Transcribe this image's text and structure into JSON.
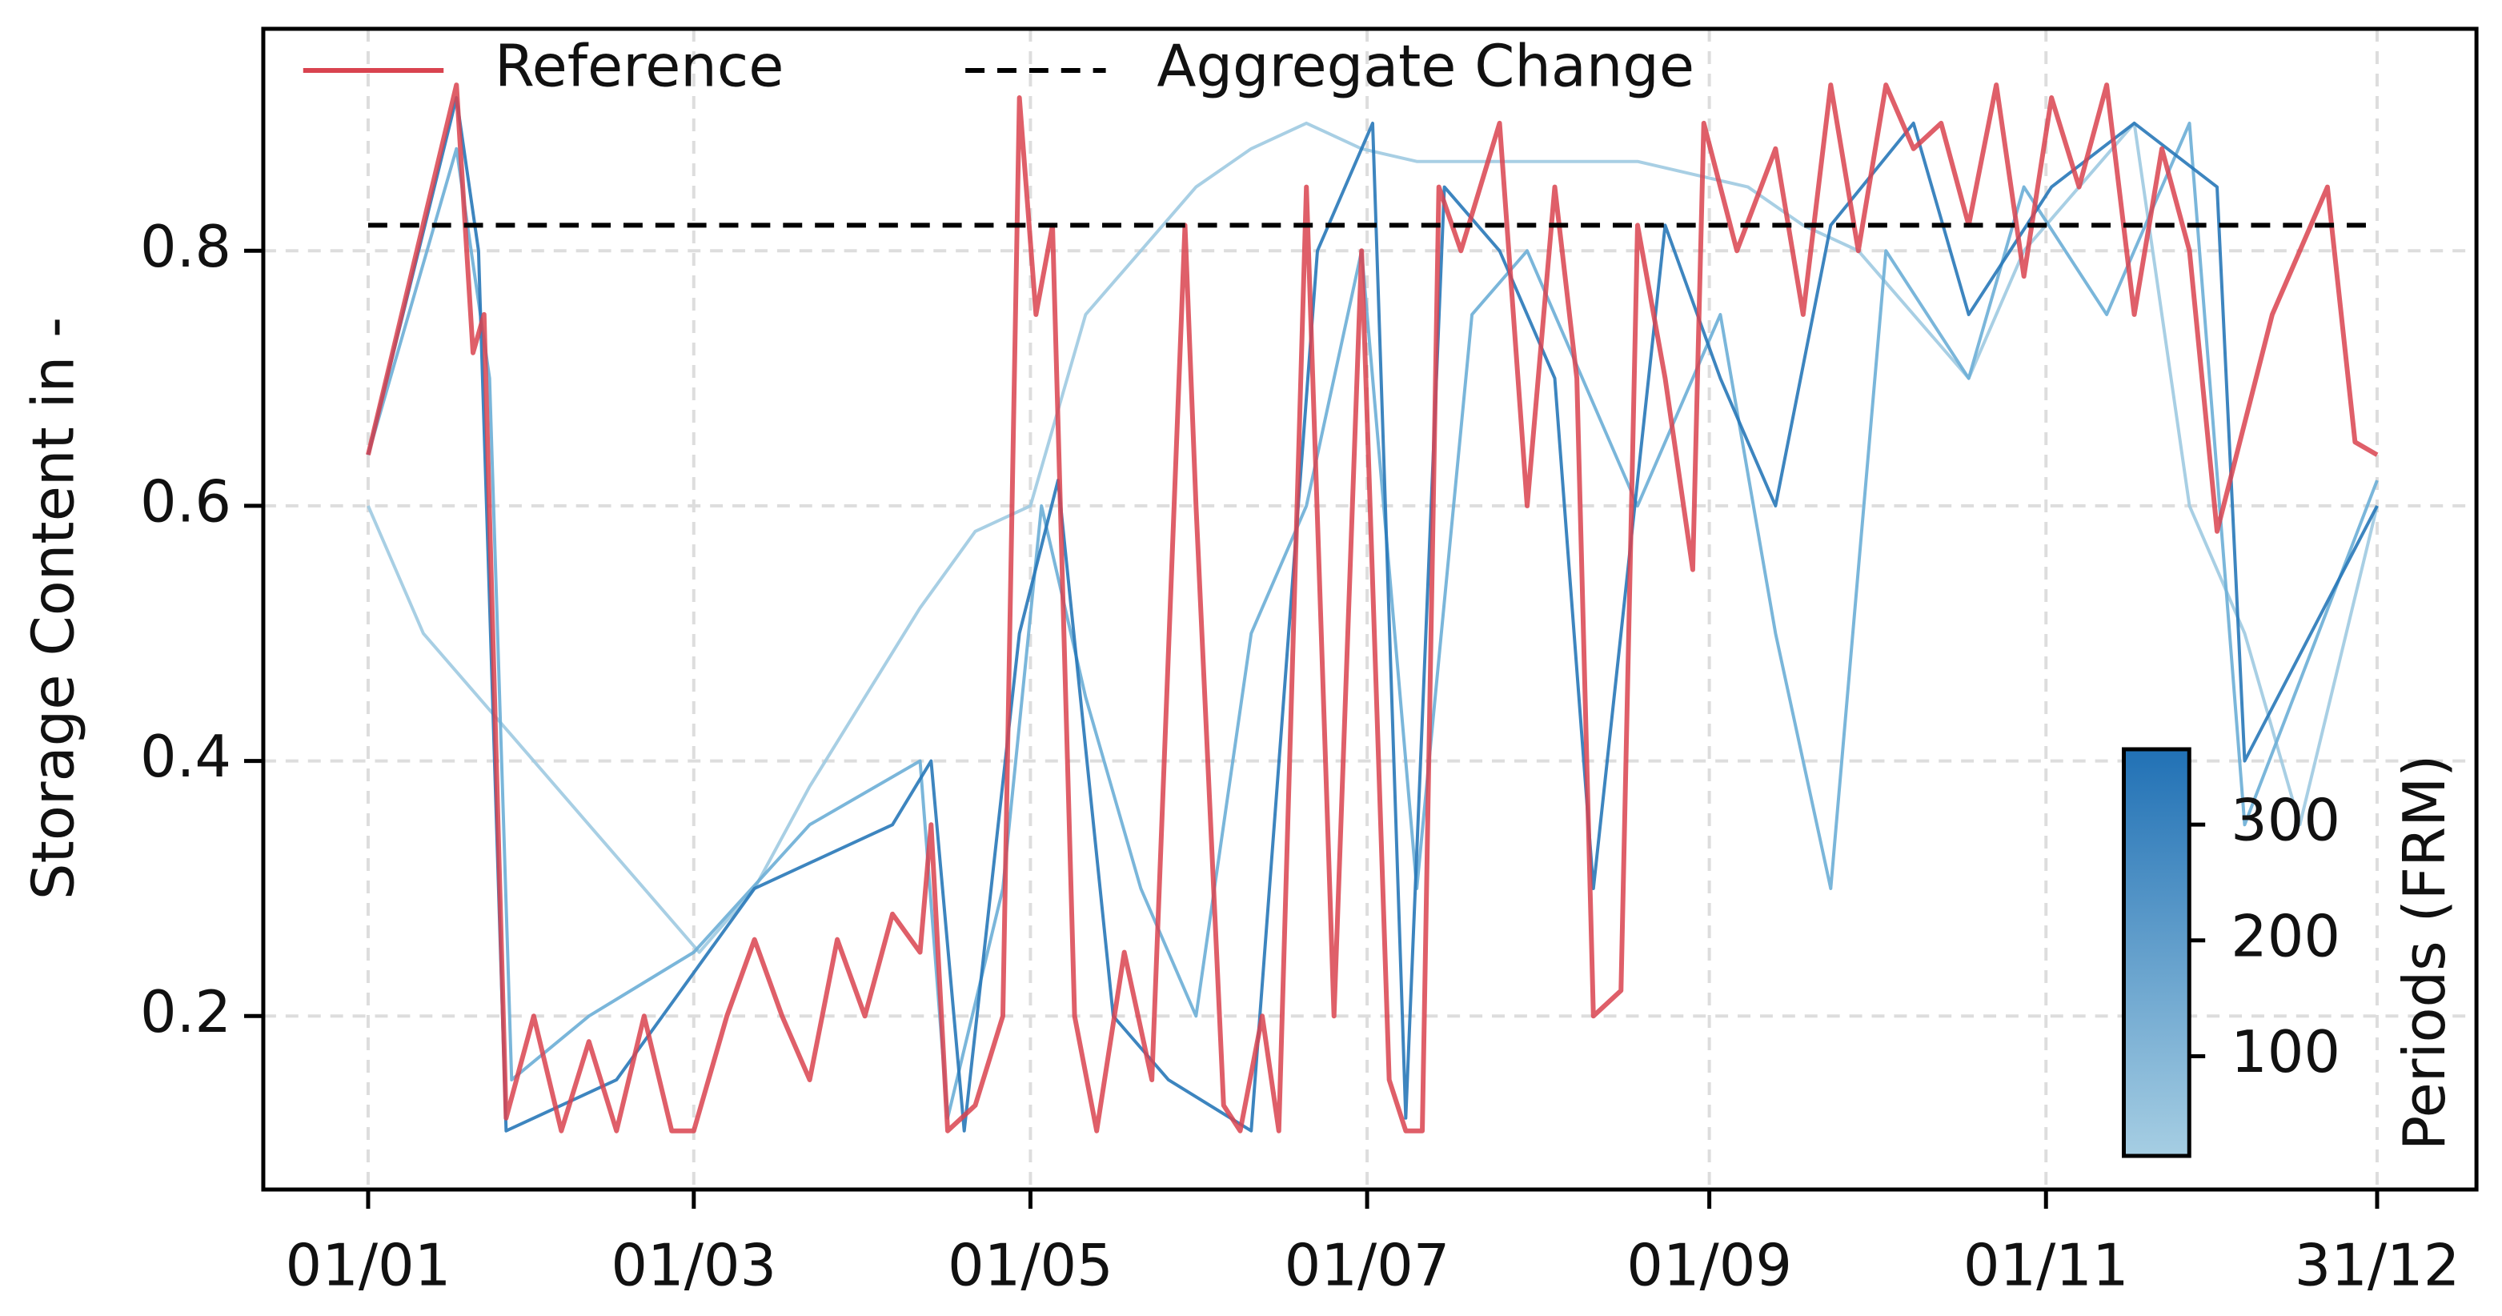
{
  "chart_data": {
    "type": "line",
    "ylabel": "Storage Content in -",
    "xlim": [
      -19,
      382
    ],
    "ylim": [
      0.064,
      0.974
    ],
    "xticks": [
      {
        "value": 0,
        "label": "01/01"
      },
      {
        "value": 59,
        "label": "01/03"
      },
      {
        "value": 120,
        "label": "01/05"
      },
      {
        "value": 181,
        "label": "01/07"
      },
      {
        "value": 243,
        "label": "01/09"
      },
      {
        "value": 304,
        "label": "01/11"
      },
      {
        "value": 364,
        "label": "31/12"
      }
    ],
    "yticks": [
      0.2,
      0.4,
      0.6,
      0.8
    ],
    "grid": true,
    "legend": "upper left",
    "series": [
      {
        "color": "#9ecae1",
        "x": [
          0,
          10,
          20,
          30,
          40,
          50,
          60,
          70,
          80,
          90,
          100,
          110,
          120,
          130,
          140,
          150,
          160,
          170,
          180,
          190,
          200,
          210,
          220,
          230,
          240,
          250,
          260,
          270,
          280,
          290,
          300,
          310,
          320,
          330,
          340,
          350,
          364
        ],
        "values": [
          0.6,
          0.5,
          0.45,
          0.4,
          0.35,
          0.3,
          0.25,
          0.3,
          0.38,
          0.45,
          0.52,
          0.58,
          0.6,
          0.75,
          0.8,
          0.85,
          0.88,
          0.9,
          0.88,
          0.87,
          0.87,
          0.87,
          0.87,
          0.87,
          0.86,
          0.85,
          0.82,
          0.8,
          0.75,
          0.7,
          0.8,
          0.85,
          0.9,
          0.6,
          0.5,
          0.35,
          0.6
        ]
      },
      {
        "color": "#6baed6",
        "x": [
          0,
          16,
          22,
          26,
          40,
          59,
          80,
          100,
          105,
          115,
          122,
          130,
          140,
          150,
          160,
          170,
          180,
          190,
          200,
          210,
          220,
          230,
          245,
          255,
          265,
          275,
          290,
          300,
          315,
          330,
          340,
          364
        ],
        "values": [
          0.64,
          0.88,
          0.7,
          0.15,
          0.2,
          0.25,
          0.35,
          0.4,
          0.12,
          0.3,
          0.6,
          0.45,
          0.3,
          0.2,
          0.5,
          0.6,
          0.8,
          0.3,
          0.75,
          0.8,
          0.7,
          0.6,
          0.75,
          0.5,
          0.3,
          0.8,
          0.7,
          0.85,
          0.75,
          0.9,
          0.35,
          0.62
        ]
      },
      {
        "color": "#2878b8",
        "x": [
          0,
          16,
          20,
          25,
          45,
          70,
          95,
          102,
          108,
          118,
          125,
          135,
          145,
          160,
          172,
          182,
          188,
          195,
          205,
          215,
          222,
          235,
          245,
          255,
          265,
          280,
          290,
          305,
          320,
          335,
          340,
          364
        ],
        "values": [
          0.64,
          0.92,
          0.8,
          0.11,
          0.15,
          0.3,
          0.35,
          0.4,
          0.11,
          0.5,
          0.62,
          0.2,
          0.15,
          0.11,
          0.8,
          0.9,
          0.12,
          0.85,
          0.8,
          0.7,
          0.3,
          0.82,
          0.7,
          0.6,
          0.82,
          0.9,
          0.75,
          0.85,
          0.9,
          0.85,
          0.4,
          0.6
        ]
      },
      {
        "name": "Reference",
        "color": "#d9434f",
        "x": [
          0,
          16,
          19,
          21,
          25,
          30,
          35,
          40,
          45,
          50,
          55,
          59,
          65,
          70,
          75,
          80,
          85,
          90,
          95,
          100,
          102,
          105,
          110,
          115,
          118,
          121,
          124,
          128,
          132,
          137,
          142,
          148,
          150,
          155,
          158,
          162,
          165,
          170,
          175,
          180,
          185,
          188,
          191,
          194,
          198,
          205,
          210,
          215,
          219,
          222,
          227,
          230,
          235,
          240,
          242,
          248,
          255,
          260,
          265,
          270,
          275,
          280,
          285,
          290,
          295,
          300,
          305,
          310,
          315,
          320,
          325,
          330,
          335,
          345,
          355,
          360,
          364
        ],
        "values": [
          0.64,
          0.93,
          0.72,
          0.75,
          0.12,
          0.2,
          0.11,
          0.18,
          0.11,
          0.2,
          0.11,
          0.11,
          0.2,
          0.26,
          0.2,
          0.15,
          0.26,
          0.2,
          0.28,
          0.25,
          0.35,
          0.11,
          0.13,
          0.2,
          0.92,
          0.75,
          0.82,
          0.2,
          0.11,
          0.25,
          0.15,
          0.82,
          0.6,
          0.13,
          0.11,
          0.2,
          0.11,
          0.85,
          0.2,
          0.8,
          0.15,
          0.11,
          0.11,
          0.85,
          0.8,
          0.9,
          0.6,
          0.85,
          0.7,
          0.2,
          0.22,
          0.82,
          0.7,
          0.55,
          0.9,
          0.8,
          0.88,
          0.75,
          0.93,
          0.8,
          0.93,
          0.88,
          0.9,
          0.82,
          0.93,
          0.78,
          0.92,
          0.85,
          0.93,
          0.75,
          0.88,
          0.8,
          0.58,
          0.75,
          0.85,
          0.65,
          0.64
        ]
      }
    ],
    "hline": {
      "name": "Aggregate Change",
      "value": 0.82,
      "x": [
        0,
        364
      ],
      "color": "#000000"
    },
    "colorbar": {
      "label": "Periods (FRM)",
      "lim": [
        14,
        365
      ],
      "ticks": [
        100,
        200,
        300
      ],
      "colors": [
        "#a6cee3",
        "#2171b5"
      ]
    }
  }
}
